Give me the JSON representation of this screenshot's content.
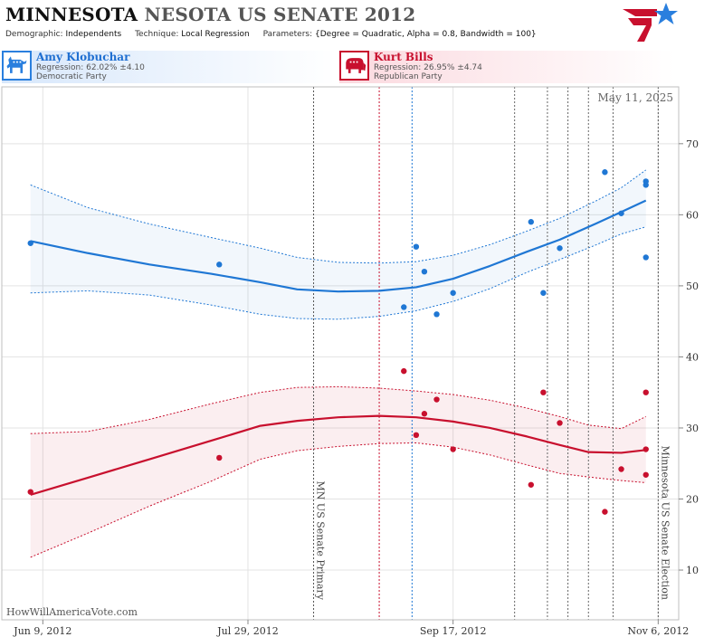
{
  "title": {
    "state": "MINNESOTA",
    "rest": "NESOTA US SENATE 2012"
  },
  "parameters": [
    {
      "label": "Demographic:",
      "value": "Independents"
    },
    {
      "label": "Technique:",
      "value": "Local Regression"
    },
    {
      "label": "Parameters:",
      "value": "{Degree = Quadratic, Alpha = 0.8, Bandwidth = 100}"
    }
  ],
  "candidates": {
    "dem": {
      "name": "Amy Klobuchar",
      "regression": "Regression: 62.02% ±4.10",
      "party": "Democratic Party",
      "color": "#1f77d4"
    },
    "rep": {
      "name": "Kurt Bills",
      "regression": "Regression: 26.95% ±4.74",
      "party": "Republican Party",
      "color": "#c8102e"
    }
  },
  "watermark": "HowWillAmericaVote.com",
  "chart_data": {
    "type": "scatter",
    "date_label": "May 11, 2025",
    "x_axis": {
      "range": [
        "2012-05-30",
        "2012-11-11"
      ],
      "ticks": [
        "Jun 9, 2012",
        "Jul 29, 2012",
        "Sep 17, 2012",
        "Nov 6, 2012"
      ],
      "tick_dates": [
        "2012-06-09",
        "2012-07-29",
        "2012-09-17",
        "2012-11-06"
      ]
    },
    "y_axis": {
      "range": [
        3,
        78
      ],
      "ticks": [
        10,
        20,
        30,
        40,
        50,
        60,
        70
      ]
    },
    "grid": true,
    "annotations": [
      {
        "date": "2012-08-14",
        "label": "MN US Senate Primary"
      },
      {
        "date": "2012-11-06",
        "label": "Minnesota US Senate Election"
      }
    ],
    "marker_lines": [
      {
        "date": "2012-08-30",
        "color": "#c8102e"
      },
      {
        "date": "2012-09-07",
        "color": "#1f77d4"
      },
      {
        "date": "2012-10-02",
        "color": "#666666"
      },
      {
        "date": "2012-10-10",
        "color": "#666666"
      },
      {
        "date": "2012-10-15",
        "color": "#666666"
      },
      {
        "date": "2012-10-20",
        "color": "#666666"
      },
      {
        "date": "2012-10-26",
        "color": "#666666"
      }
    ],
    "series": [
      {
        "name": "Amy Klobuchar",
        "color": "#1f77d4",
        "points": [
          [
            "2012-06-06",
            56
          ],
          [
            "2012-07-22",
            53
          ],
          [
            "2012-09-05",
            47
          ],
          [
            "2012-09-08",
            55.5
          ],
          [
            "2012-09-10",
            52
          ],
          [
            "2012-09-13",
            46
          ],
          [
            "2012-09-17",
            49
          ],
          [
            "2012-10-06",
            59
          ],
          [
            "2012-10-09",
            49
          ],
          [
            "2012-10-13",
            55.3
          ],
          [
            "2012-10-24",
            66
          ],
          [
            "2012-10-28",
            60.2
          ],
          [
            "2012-11-03",
            64.2
          ],
          [
            "2012-11-03",
            64.7
          ],
          [
            "2012-11-03",
            54
          ]
        ],
        "fit": [
          [
            "2012-06-06",
            56.3
          ],
          [
            "2012-06-20",
            54.6
          ],
          [
            "2012-07-05",
            53.0
          ],
          [
            "2012-07-20",
            51.7
          ],
          [
            "2012-08-01",
            50.5
          ],
          [
            "2012-08-10",
            49.5
          ],
          [
            "2012-08-20",
            49.2
          ],
          [
            "2012-08-30",
            49.3
          ],
          [
            "2012-09-08",
            49.8
          ],
          [
            "2012-09-17",
            51.0
          ],
          [
            "2012-09-26",
            52.8
          ],
          [
            "2012-10-05",
            54.8
          ],
          [
            "2012-10-13",
            56.5
          ],
          [
            "2012-10-22",
            58.8
          ],
          [
            "2012-10-28",
            60.4
          ],
          [
            "2012-11-03",
            62.0
          ]
        ],
        "band_upper": [
          [
            "2012-06-06",
            64.2
          ],
          [
            "2012-06-20",
            61.0
          ],
          [
            "2012-07-05",
            58.7
          ],
          [
            "2012-07-20",
            56.8
          ],
          [
            "2012-08-01",
            55.3
          ],
          [
            "2012-08-10",
            54.0
          ],
          [
            "2012-08-20",
            53.3
          ],
          [
            "2012-08-30",
            53.2
          ],
          [
            "2012-09-08",
            53.4
          ],
          [
            "2012-09-17",
            54.3
          ],
          [
            "2012-09-26",
            55.8
          ],
          [
            "2012-10-05",
            57.7
          ],
          [
            "2012-10-13",
            59.5
          ],
          [
            "2012-10-22",
            62.0
          ],
          [
            "2012-10-28",
            63.8
          ],
          [
            "2012-11-03",
            66.3
          ]
        ],
        "band_lower": [
          [
            "2012-06-06",
            49.0
          ],
          [
            "2012-06-20",
            49.3
          ],
          [
            "2012-07-05",
            48.7
          ],
          [
            "2012-07-20",
            47.3
          ],
          [
            "2012-08-01",
            46.0
          ],
          [
            "2012-08-10",
            45.4
          ],
          [
            "2012-08-20",
            45.3
          ],
          [
            "2012-08-30",
            45.7
          ],
          [
            "2012-09-08",
            46.5
          ],
          [
            "2012-09-17",
            47.8
          ],
          [
            "2012-09-26",
            49.6
          ],
          [
            "2012-10-05",
            51.9
          ],
          [
            "2012-10-13",
            53.7
          ],
          [
            "2012-10-22",
            55.8
          ],
          [
            "2012-10-28",
            57.3
          ],
          [
            "2012-11-03",
            58.3
          ]
        ]
      },
      {
        "name": "Kurt Bills",
        "color": "#c8102e",
        "points": [
          [
            "2012-06-06",
            21
          ],
          [
            "2012-07-22",
            25.8
          ],
          [
            "2012-09-05",
            38
          ],
          [
            "2012-09-08",
            29
          ],
          [
            "2012-09-10",
            32
          ],
          [
            "2012-09-13",
            34
          ],
          [
            "2012-09-17",
            27
          ],
          [
            "2012-10-06",
            22
          ],
          [
            "2012-10-09",
            35
          ],
          [
            "2012-10-13",
            30.7
          ],
          [
            "2012-10-24",
            18.2
          ],
          [
            "2012-10-28",
            24.2
          ],
          [
            "2012-11-03",
            35
          ],
          [
            "2012-11-03",
            27
          ],
          [
            "2012-11-03",
            23.4
          ]
        ],
        "fit": [
          [
            "2012-06-06",
            20.6
          ],
          [
            "2012-06-20",
            23.0
          ],
          [
            "2012-07-05",
            25.6
          ],
          [
            "2012-07-20",
            28.2
          ],
          [
            "2012-08-01",
            30.3
          ],
          [
            "2012-08-10",
            31.0
          ],
          [
            "2012-08-20",
            31.5
          ],
          [
            "2012-08-30",
            31.7
          ],
          [
            "2012-09-08",
            31.5
          ],
          [
            "2012-09-17",
            30.9
          ],
          [
            "2012-09-26",
            30.0
          ],
          [
            "2012-10-05",
            28.8
          ],
          [
            "2012-10-13",
            27.6
          ],
          [
            "2012-10-20",
            26.6
          ],
          [
            "2012-10-28",
            26.5
          ],
          [
            "2012-11-03",
            26.9
          ]
        ],
        "band_upper": [
          [
            "2012-06-06",
            29.2
          ],
          [
            "2012-06-20",
            29.5
          ],
          [
            "2012-07-05",
            31.2
          ],
          [
            "2012-07-20",
            33.4
          ],
          [
            "2012-08-01",
            35.0
          ],
          [
            "2012-08-10",
            35.7
          ],
          [
            "2012-08-20",
            35.8
          ],
          [
            "2012-08-30",
            35.6
          ],
          [
            "2012-09-08",
            35.2
          ],
          [
            "2012-09-17",
            34.7
          ],
          [
            "2012-09-26",
            33.9
          ],
          [
            "2012-10-05",
            32.8
          ],
          [
            "2012-10-13",
            31.6
          ],
          [
            "2012-10-20",
            30.4
          ],
          [
            "2012-10-28",
            29.9
          ],
          [
            "2012-11-03",
            31.6
          ]
        ],
        "band_lower": [
          [
            "2012-06-06",
            11.8
          ],
          [
            "2012-06-20",
            15.2
          ],
          [
            "2012-07-05",
            19.0
          ],
          [
            "2012-07-20",
            22.5
          ],
          [
            "2012-08-01",
            25.6
          ],
          [
            "2012-08-10",
            26.8
          ],
          [
            "2012-08-20",
            27.4
          ],
          [
            "2012-08-30",
            27.8
          ],
          [
            "2012-09-08",
            27.9
          ],
          [
            "2012-09-17",
            27.3
          ],
          [
            "2012-09-26",
            26.2
          ],
          [
            "2012-10-05",
            24.8
          ],
          [
            "2012-10-13",
            23.6
          ],
          [
            "2012-10-20",
            23.1
          ],
          [
            "2012-10-28",
            22.6
          ],
          [
            "2012-11-03",
            22.3
          ]
        ]
      }
    ]
  }
}
